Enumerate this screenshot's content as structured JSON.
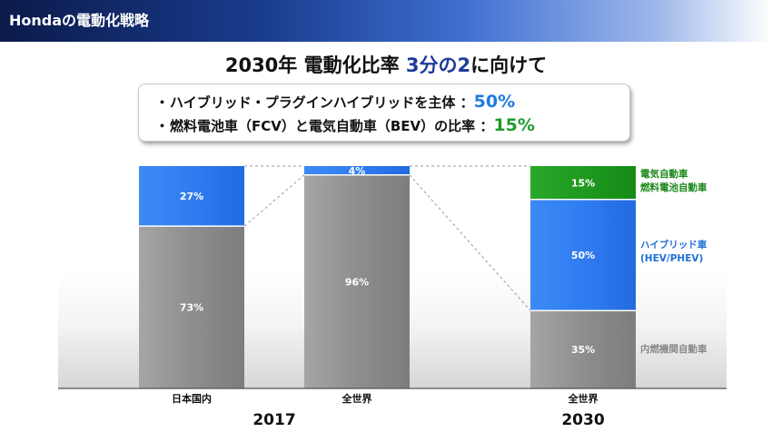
{
  "banner": {
    "title": "Hondaの電動化戦略"
  },
  "headline": {
    "prefix": "2030年 電動化比率 ",
    "highlight": "3分の2",
    "suffix": "に向けて"
  },
  "info": {
    "line1": {
      "bullet": "・",
      "text": "ハイブリッド・プラグインハイブリッドを主体 ：",
      "value": "50%"
    },
    "line2": {
      "bullet": "・",
      "text": "燃料電池車（FCV）と電気自動車（BEV）の比率 ：",
      "value": "15%"
    }
  },
  "colors": {
    "ice": "#8c8c8c",
    "hybrid": "#2f7cf0",
    "electric": "#1e9a1e",
    "label_green": "#1a8a1a",
    "label_blue": "#1f6fd8",
    "label_gray": "#8a8a8a"
  },
  "chart_data": {
    "type": "bar",
    "stacked": true,
    "unit": "%",
    "categories": [
      "日本国内",
      "全世界",
      "全世界"
    ],
    "groups": [
      {
        "label": "2017",
        "categories": [
          "日本国内",
          "全世界"
        ]
      },
      {
        "label": "2030",
        "categories": [
          "全世界"
        ]
      }
    ],
    "series": [
      {
        "name": "内燃機関自動車",
        "values": [
          73,
          96,
          35
        ],
        "labels": [
          "73%",
          "96%",
          "35%"
        ]
      },
      {
        "name": "ハイブリッド車 (HEV/PHEV)",
        "values": [
          27,
          4,
          50
        ],
        "labels": [
          "27%",
          "4%",
          "50%"
        ]
      },
      {
        "name": "電気自動車 燃料電池自動車",
        "values": [
          0,
          0,
          15
        ],
        "labels": [
          "",
          "",
          "15%"
        ]
      }
    ],
    "legend": [
      {
        "lines": [
          "電気自動車",
          "燃料電池自動車"
        ],
        "color": "#1a8a1a"
      },
      {
        "lines": [
          "ハイブリッド車",
          "(HEV/PHEV)"
        ],
        "color": "#1f6fd8"
      },
      {
        "lines": [
          "内燃機関自動車"
        ],
        "color": "#8a8a8a"
      }
    ],
    "legend_position": "right",
    "ylim": [
      0,
      100
    ],
    "grid": false
  }
}
